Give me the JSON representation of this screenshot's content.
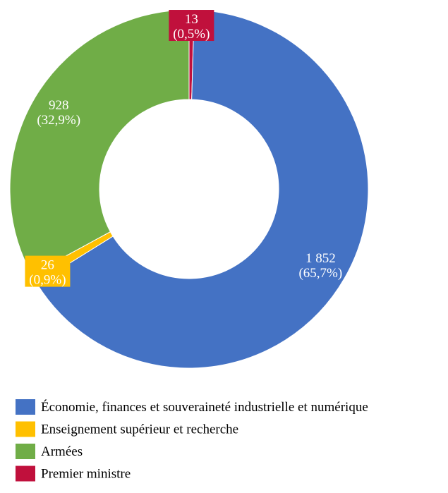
{
  "chart_data": {
    "type": "donut",
    "categories": [
      "Économie, finances et souveraineté industrielle et numérique",
      "Enseignement supérieur et recherche",
      "Armées",
      "Premier ministre"
    ],
    "values": [
      1852,
      26,
      928,
      13
    ],
    "value_labels": [
      "1 852",
      "26",
      "928",
      "13"
    ],
    "percent_labels": [
      "(65,7%)",
      "(0,9%)",
      "(32,9%)",
      "(0,5%)"
    ],
    "colors": [
      "#4472c4",
      "#ffc000",
      "#70ad47",
      "#c0103c"
    ],
    "legend": "bottom"
  }
}
